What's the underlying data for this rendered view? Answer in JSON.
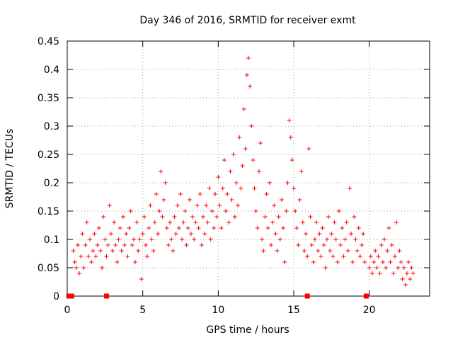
{
  "chart_data": {
    "type": "scatter",
    "title": "Day 346 of 2016, SRMTID for receiver exmt",
    "xlabel": "GPS time / hours",
    "ylabel": "SRMTID / TECUs",
    "xlim": [
      0,
      24
    ],
    "ylim": [
      0,
      0.45
    ],
    "x_ticks": [
      "0",
      "5",
      "10",
      "15",
      "20"
    ],
    "y_ticks": [
      "0",
      "0.05",
      "0.1",
      "0.15",
      "0.2",
      "0.25",
      "0.3",
      "0.35",
      "0.4",
      "0.45"
    ],
    "grid": true,
    "marker": "+",
    "color": "#ff0000",
    "zero_points_x": [
      0.1,
      0.2,
      0.3,
      2.6,
      15.9,
      19.8
    ],
    "series": [
      {
        "name": "SRMTID",
        "points": [
          [
            0.4,
            0.08
          ],
          [
            0.5,
            0.06
          ],
          [
            0.6,
            0.05
          ],
          [
            0.7,
            0.09
          ],
          [
            0.8,
            0.04
          ],
          [
            0.9,
            0.07
          ],
          [
            1.0,
            0.11
          ],
          [
            1.1,
            0.05
          ],
          [
            1.2,
            0.09
          ],
          [
            1.3,
            0.13
          ],
          [
            1.4,
            0.07
          ],
          [
            1.5,
            0.1
          ],
          [
            1.6,
            0.06
          ],
          [
            1.7,
            0.08
          ],
          [
            1.8,
            0.11
          ],
          [
            1.9,
            0.07
          ],
          [
            2.0,
            0.09
          ],
          [
            2.1,
            0.12
          ],
          [
            2.2,
            0.08
          ],
          [
            2.3,
            0.05
          ],
          [
            2.4,
            0.14
          ],
          [
            2.5,
            0.1
          ],
          [
            2.6,
            0.07
          ],
          [
            2.7,
            0.09
          ],
          [
            2.8,
            0.16
          ],
          [
            2.9,
            0.11
          ],
          [
            3.0,
            0.08
          ],
          [
            3.1,
            0.13
          ],
          [
            3.2,
            0.09
          ],
          [
            3.3,
            0.06
          ],
          [
            3.4,
            0.1
          ],
          [
            3.5,
            0.12
          ],
          [
            3.6,
            0.08
          ],
          [
            3.7,
            0.14
          ],
          [
            3.8,
            0.09
          ],
          [
            3.9,
            0.11
          ],
          [
            4.0,
            0.07
          ],
          [
            4.1,
            0.12
          ],
          [
            4.2,
            0.15
          ],
          [
            4.3,
            0.09
          ],
          [
            4.4,
            0.1
          ],
          [
            4.5,
            0.06
          ],
          [
            4.6,
            0.13
          ],
          [
            4.7,
            0.08
          ],
          [
            4.8,
            0.1
          ],
          [
            4.9,
            0.03
          ],
          [
            5.0,
            0.11
          ],
          [
            5.1,
            0.14
          ],
          [
            5.2,
            0.09
          ],
          [
            5.3,
            0.07
          ],
          [
            5.4,
            0.12
          ],
          [
            5.5,
            0.16
          ],
          [
            5.6,
            0.1
          ],
          [
            5.7,
            0.08
          ],
          [
            5.8,
            0.13
          ],
          [
            5.9,
            0.18
          ],
          [
            6.0,
            0.11
          ],
          [
            6.1,
            0.15
          ],
          [
            6.2,
            0.22
          ],
          [
            6.3,
            0.14
          ],
          [
            6.4,
            0.17
          ],
          [
            6.5,
            0.2
          ],
          [
            6.6,
            0.12
          ],
          [
            6.7,
            0.09
          ],
          [
            6.8,
            0.13
          ],
          [
            6.9,
            0.1
          ],
          [
            7.0,
            0.08
          ],
          [
            7.1,
            0.14
          ],
          [
            7.2,
            0.11
          ],
          [
            7.3,
            0.16
          ],
          [
            7.4,
            0.12
          ],
          [
            7.5,
            0.18
          ],
          [
            7.6,
            0.1
          ],
          [
            7.7,
            0.13
          ],
          [
            7.8,
            0.15
          ],
          [
            7.9,
            0.09
          ],
          [
            8.0,
            0.12
          ],
          [
            8.1,
            0.17
          ],
          [
            8.2,
            0.11
          ],
          [
            8.3,
            0.14
          ],
          [
            8.4,
            0.1
          ],
          [
            8.5,
            0.13
          ],
          [
            8.6,
            0.16
          ],
          [
            8.7,
            0.12
          ],
          [
            8.8,
            0.18
          ],
          [
            8.9,
            0.09
          ],
          [
            9.0,
            0.14
          ],
          [
            9.1,
            0.11
          ],
          [
            9.2,
            0.16
          ],
          [
            9.3,
            0.13
          ],
          [
            9.4,
            0.19
          ],
          [
            9.5,
            0.1
          ],
          [
            9.6,
            0.15
          ],
          [
            9.7,
            0.12
          ],
          [
            9.8,
            0.18
          ],
          [
            9.9,
            0.14
          ],
          [
            10.0,
            0.21
          ],
          [
            10.1,
            0.16
          ],
          [
            10.2,
            0.12
          ],
          [
            10.3,
            0.19
          ],
          [
            10.4,
            0.24
          ],
          [
            10.5,
            0.15
          ],
          [
            10.6,
            0.18
          ],
          [
            10.7,
            0.13
          ],
          [
            10.8,
            0.22
          ],
          [
            10.9,
            0.17
          ],
          [
            11.0,
            0.25
          ],
          [
            11.1,
            0.14
          ],
          [
            11.2,
            0.2
          ],
          [
            11.3,
            0.16
          ],
          [
            11.4,
            0.28
          ],
          [
            11.5,
            0.19
          ],
          [
            11.6,
            0.23
          ],
          [
            11.7,
            0.33
          ],
          [
            11.8,
            0.26
          ],
          [
            11.9,
            0.39
          ],
          [
            12.0,
            0.42
          ],
          [
            12.1,
            0.37
          ],
          [
            12.2,
            0.3
          ],
          [
            12.3,
            0.24
          ],
          [
            12.4,
            0.19
          ],
          [
            12.5,
            0.15
          ],
          [
            12.6,
            0.12
          ],
          [
            12.7,
            0.22
          ],
          [
            12.8,
            0.27
          ],
          [
            12.9,
            0.1
          ],
          [
            13.0,
            0.08
          ],
          [
            13.1,
            0.14
          ],
          [
            13.2,
            0.18
          ],
          [
            13.3,
            0.12
          ],
          [
            13.4,
            0.2
          ],
          [
            13.5,
            0.09
          ],
          [
            13.6,
            0.13
          ],
          [
            13.7,
            0.16
          ],
          [
            13.8,
            0.11
          ],
          [
            13.9,
            0.08
          ],
          [
            14.0,
            0.14
          ],
          [
            14.1,
            0.1
          ],
          [
            14.2,
            0.17
          ],
          [
            14.3,
            0.12
          ],
          [
            14.4,
            0.06
          ],
          [
            14.5,
            0.15
          ],
          [
            14.6,
            0.2
          ],
          [
            14.7,
            0.31
          ],
          [
            14.8,
            0.28
          ],
          [
            14.9,
            0.24
          ],
          [
            15.0,
            0.19
          ],
          [
            15.1,
            0.15
          ],
          [
            15.2,
            0.12
          ],
          [
            15.3,
            0.09
          ],
          [
            15.4,
            0.17
          ],
          [
            15.5,
            0.22
          ],
          [
            15.6,
            0.13
          ],
          [
            15.7,
            0.08
          ],
          [
            15.8,
            0.11
          ],
          [
            15.9,
            0.07
          ],
          [
            16.0,
            0.26
          ],
          [
            16.1,
            0.14
          ],
          [
            16.2,
            0.09
          ],
          [
            16.3,
            0.06
          ],
          [
            16.4,
            0.1
          ],
          [
            16.5,
            0.13
          ],
          [
            16.6,
            0.08
          ],
          [
            16.7,
            0.11
          ],
          [
            16.8,
            0.07
          ],
          [
            16.9,
            0.12
          ],
          [
            17.0,
            0.09
          ],
          [
            17.1,
            0.05
          ],
          [
            17.2,
            0.1
          ],
          [
            17.3,
            0.14
          ],
          [
            17.4,
            0.08
          ],
          [
            17.5,
            0.11
          ],
          [
            17.6,
            0.07
          ],
          [
            17.7,
            0.13
          ],
          [
            17.8,
            0.1
          ],
          [
            17.9,
            0.06
          ],
          [
            18.0,
            0.15
          ],
          [
            18.1,
            0.09
          ],
          [
            18.2,
            0.12
          ],
          [
            18.3,
            0.07
          ],
          [
            18.4,
            0.1
          ],
          [
            18.5,
            0.13
          ],
          [
            18.6,
            0.08
          ],
          [
            18.7,
            0.19
          ],
          [
            18.8,
            0.11
          ],
          [
            18.9,
            0.06
          ],
          [
            19.0,
            0.14
          ],
          [
            19.1,
            0.1
          ],
          [
            19.2,
            0.08
          ],
          [
            19.3,
            0.12
          ],
          [
            19.4,
            0.07
          ],
          [
            19.5,
            0.09
          ],
          [
            19.6,
            0.11
          ],
          [
            19.7,
            0.06
          ],
          [
            20.0,
            0.05
          ],
          [
            20.1,
            0.07
          ],
          [
            20.2,
            0.04
          ],
          [
            20.3,
            0.06
          ],
          [
            20.4,
            0.08
          ],
          [
            20.5,
            0.05
          ],
          [
            20.6,
            0.07
          ],
          [
            20.7,
            0.04
          ],
          [
            20.8,
            0.09
          ],
          [
            20.9,
            0.06
          ],
          [
            21.0,
            0.1
          ],
          [
            21.1,
            0.05
          ],
          [
            21.2,
            0.08
          ],
          [
            21.3,
            0.12
          ],
          [
            21.4,
            0.06
          ],
          [
            21.5,
            0.09
          ],
          [
            21.6,
            0.04
          ],
          [
            21.7,
            0.07
          ],
          [
            21.8,
            0.13
          ],
          [
            21.9,
            0.05
          ],
          [
            22.0,
            0.08
          ],
          [
            22.1,
            0.06
          ],
          [
            22.2,
            0.03
          ],
          [
            22.3,
            0.05
          ],
          [
            22.4,
            0.02
          ],
          [
            22.5,
            0.04
          ],
          [
            22.6,
            0.06
          ],
          [
            22.7,
            0.03
          ],
          [
            22.8,
            0.05
          ],
          [
            22.9,
            0.04
          ]
        ]
      }
    ]
  }
}
